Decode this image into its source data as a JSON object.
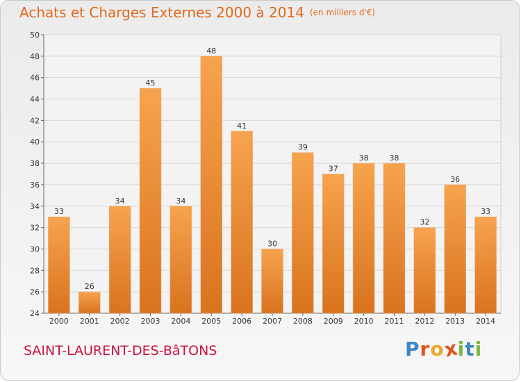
{
  "header": {
    "title": "Achats et Charges Externes 2000 à 2014",
    "subtitle": "(en milliers d'€)"
  },
  "footer": {
    "place": "SAINT-LAURENT-DES-BâTONS",
    "logo": "Proxiti"
  },
  "colors": {
    "title": "#e06a1d",
    "place": "#c8153f",
    "bar_light": "#f7a34e",
    "bar_dark": "#d9731e"
  },
  "chart_data": {
    "type": "bar",
    "title": "Achats et Charges Externes 2000 à 2014",
    "subtitle": "(en milliers d'€)",
    "categories": [
      "2000",
      "2001",
      "2002",
      "2003",
      "2004",
      "2005",
      "2006",
      "2007",
      "2008",
      "2009",
      "2010",
      "2011",
      "2012",
      "2013",
      "2014"
    ],
    "values": [
      33,
      26,
      34,
      45,
      34,
      48,
      41,
      30,
      39,
      37,
      38,
      38,
      32,
      36,
      33
    ],
    "ylim": [
      24,
      50
    ],
    "yticks": [
      24,
      26,
      28,
      30,
      32,
      34,
      36,
      38,
      40,
      42,
      44,
      46,
      48,
      50
    ],
    "grid": true,
    "data_labels": true
  }
}
